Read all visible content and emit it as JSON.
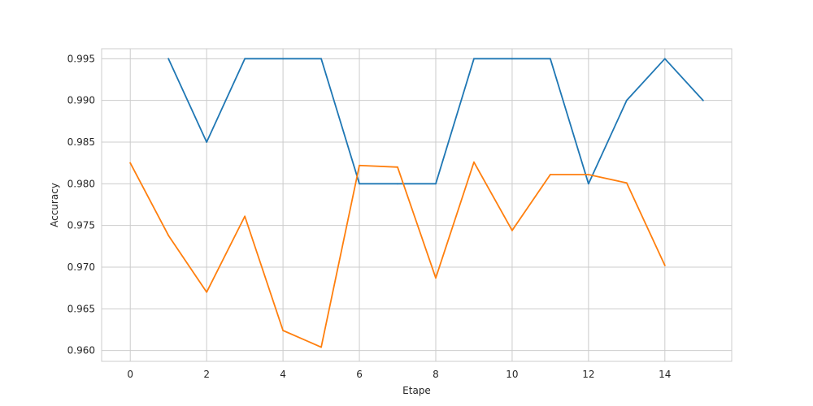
{
  "chart_data": {
    "type": "line",
    "xlabel": "Etape",
    "ylabel": "Accuracy",
    "xlim": [
      -0.75,
      15.75
    ],
    "ylim": [
      0.9587,
      0.9962
    ],
    "xticks": [
      0,
      2,
      4,
      6,
      8,
      10,
      12,
      14
    ],
    "yticks": [
      0.96,
      0.965,
      0.97,
      0.975,
      0.98,
      0.985,
      0.99,
      0.995
    ],
    "ytick_labels": [
      "0.960",
      "0.965",
      "0.970",
      "0.975",
      "0.980",
      "0.985",
      "0.990",
      "0.995"
    ],
    "grid": true,
    "series": [
      {
        "color": "#1f77b4",
        "x": [
          1,
          2,
          3,
          4,
          5,
          6,
          7,
          8,
          9,
          10,
          11,
          12,
          13,
          14,
          15
        ],
        "values": [
          0.995,
          0.985,
          0.995,
          0.995,
          0.995,
          0.98,
          0.98,
          0.98,
          0.995,
          0.995,
          0.995,
          0.98,
          0.99,
          0.995,
          0.99
        ]
      },
      {
        "color": "#ff7f0e",
        "x": [
          0,
          1,
          2,
          3,
          4,
          5,
          6,
          7,
          8,
          9,
          10,
          11,
          12,
          13,
          14
        ],
        "values": [
          0.9825,
          0.9738,
          0.967,
          0.9761,
          0.9624,
          0.9604,
          0.9822,
          0.982,
          0.9687,
          0.9826,
          0.9744,
          0.9811,
          0.9811,
          0.9801,
          0.9702
        ]
      }
    ]
  }
}
